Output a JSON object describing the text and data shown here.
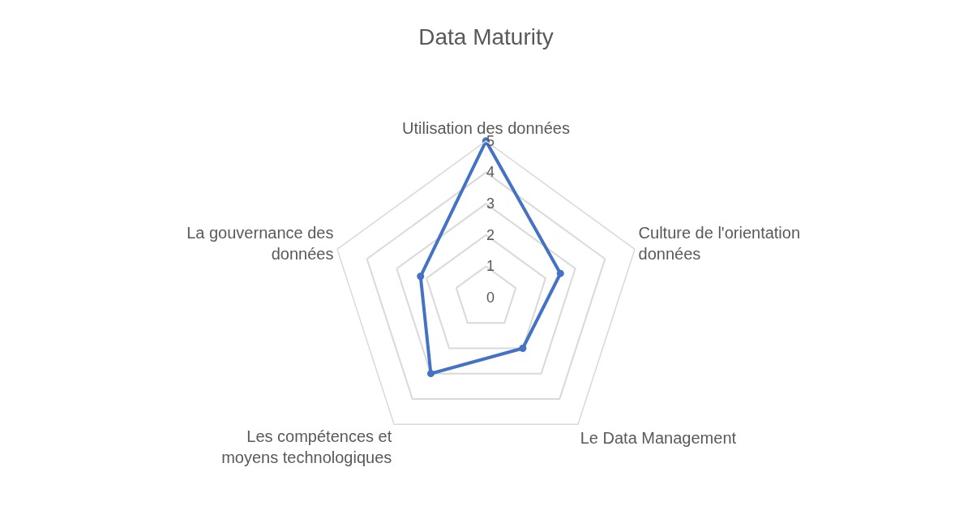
{
  "chart_data": {
    "type": "radar",
    "title": "Data Maturity",
    "categories": [
      "Utilisation des données",
      "Culture de l'orientation données",
      "Le Data Management",
      "Les compétences et moyens technologiques",
      "La gouvernance des données"
    ],
    "series": [
      {
        "color": "#4472c4",
        "values": [
          5,
          2.5,
          2,
          3,
          2.2
        ]
      }
    ],
    "ylim": [
      0,
      5
    ],
    "yticks": [
      0,
      1,
      2,
      3,
      4,
      5
    ],
    "grid": true,
    "marker": "circle",
    "line_style": "solid"
  }
}
